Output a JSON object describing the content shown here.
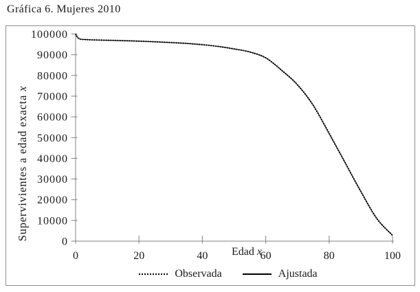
{
  "page": {
    "title": "Gráfica 6. Mujeres 2010"
  },
  "axes": {
    "y_title": {
      "text": "Supervivientes a edad exacta",
      "var": "x"
    },
    "x_title": {
      "text": "Edad",
      "var": "x"
    }
  },
  "legend": {
    "items": [
      {
        "label": "Observada",
        "style": "dotted"
      },
      {
        "label": "Ajustada",
        "style": "solid"
      }
    ]
  },
  "colors": {
    "line": "#000000",
    "axis": "#808080",
    "frame_border": "#8f8f8f",
    "text": "#1a1a1a"
  },
  "chart_data": {
    "type": "line",
    "title": "Gráfica 6. Mujeres 2010",
    "xlabel": "Edad x",
    "ylabel": "Supervivientes a edad exacta x",
    "xlim": [
      0,
      100
    ],
    "ylim": [
      0,
      100000
    ],
    "x_ticks": [
      0,
      20,
      40,
      60,
      80,
      100
    ],
    "y_ticks": [
      0,
      10000,
      20000,
      30000,
      40000,
      50000,
      60000,
      70000,
      80000,
      90000,
      100000
    ],
    "grid": false,
    "legend_position": "bottom",
    "x": [
      0,
      0.7,
      1.5,
      3,
      5,
      10,
      15,
      20,
      25,
      30,
      35,
      40,
      45,
      50,
      55,
      60,
      65,
      70,
      75,
      80,
      85,
      90,
      95,
      100
    ],
    "series": [
      {
        "name": "Observada",
        "line_style": "dotted",
        "values": [
          100000,
          98200,
          97500,
          97350,
          97200,
          97000,
          96800,
          96550,
          96250,
          95900,
          95450,
          94850,
          94000,
          92800,
          91300,
          88500,
          82500,
          75500,
          65500,
          52000,
          38000,
          24000,
          11000,
          2800
        ]
      },
      {
        "name": "Ajustada",
        "line_style": "solid",
        "values": [
          100000,
          98200,
          97500,
          97350,
          97200,
          97000,
          96800,
          96550,
          96250,
          95900,
          95450,
          94850,
          94000,
          92800,
          91300,
          88500,
          82500,
          75500,
          65500,
          52000,
          38000,
          24000,
          11000,
          2800
        ]
      }
    ]
  }
}
